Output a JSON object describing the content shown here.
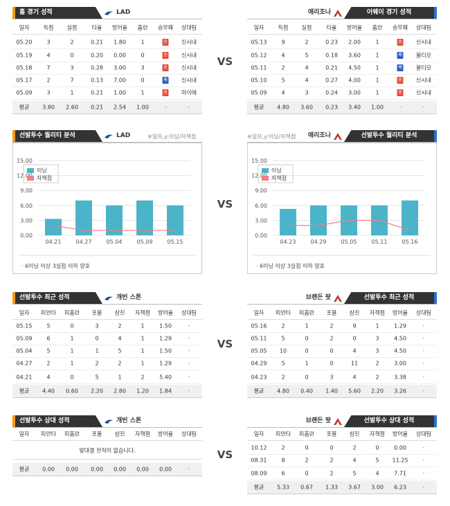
{
  "vs": "VS",
  "panels": [
    {
      "header": "홈 경기 성적",
      "team": "LAD",
      "columns": [
        "일자",
        "득점",
        "실점",
        "타율",
        "방어율",
        "홈런",
        "승무패",
        "상대팀"
      ],
      "rows": [
        [
          "05.20",
          "3",
          "2",
          "0.21",
          "1.80",
          "1",
          "승",
          "신시내"
        ],
        [
          "05.19",
          "4",
          "0",
          "0.20",
          "0.00",
          "0",
          "승",
          "신시내"
        ],
        [
          "05.18",
          "7",
          "3",
          "0.28",
          "3.00",
          "3",
          "승",
          "신시내"
        ],
        [
          "05.17",
          "2",
          "7",
          "0.13",
          "7.00",
          "0",
          "패",
          "신시내"
        ],
        [
          "05.09",
          "3",
          "1",
          "0.21",
          "1.00",
          "1",
          "승",
          "마이애"
        ],
        [
          "평균",
          "3.80",
          "2.60",
          "0.21",
          "2.54",
          "1.00",
          "·",
          "·"
        ]
      ]
    },
    {
      "header": "어웨이 경기 성적",
      "team": "애리조나",
      "columns": [
        "일자",
        "득점",
        "실점",
        "타율",
        "방어율",
        "홈런",
        "승무패",
        "상대팀"
      ],
      "rows": [
        [
          "05.13",
          "9",
          "2",
          "0.23",
          "2.00",
          "1",
          "승",
          "신시내"
        ],
        [
          "05.12",
          "4",
          "5",
          "0.18",
          "3.60",
          "1",
          "패",
          "볼티모"
        ],
        [
          "05.11",
          "2",
          "4",
          "0.21",
          "4.50",
          "1",
          "패",
          "볼티모"
        ],
        [
          "05.10",
          "5",
          "4",
          "0.27",
          "4.00",
          "1",
          "승",
          "신시내"
        ],
        [
          "05.09",
          "4",
          "3",
          "0.24",
          "3.00",
          "1",
          "승",
          "신시내"
        ],
        [
          "평균",
          "4.80",
          "3.60",
          "0.23",
          "3.40",
          "1.00",
          "·",
          "·"
        ]
      ]
    },
    {
      "header": "선발투수 최근 성적",
      "team": "개빈 스톤",
      "columns": [
        "일자",
        "피안타",
        "피홈런",
        "포볼",
        "삼진",
        "자책점",
        "방어율",
        "상대팀"
      ],
      "rows": [
        [
          "05.15",
          "5",
          "0",
          "3",
          "2",
          "1",
          "1.50",
          "·"
        ],
        [
          "05.09",
          "6",
          "1",
          "0",
          "4",
          "1",
          "1.29",
          "·"
        ],
        [
          "05.04",
          "5",
          "1",
          "1",
          "5",
          "1",
          "1.50",
          "·"
        ],
        [
          "04.27",
          "2",
          "1",
          "2",
          "2",
          "1",
          "1.29",
          "·"
        ],
        [
          "04.21",
          "4",
          "0",
          "5",
          "1",
          "2",
          "5.40",
          "·"
        ],
        [
          "평균",
          "4.40",
          "0.60",
          "2.20",
          "2.80",
          "1.20",
          "1.84",
          "·"
        ]
      ]
    },
    {
      "header": "선발투수 최근 성적",
      "team": "브랜든 팟",
      "columns": [
        "일자",
        "피안타",
        "피홈런",
        "포볼",
        "삼진",
        "자책점",
        "방어율",
        "상대팀"
      ],
      "rows": [
        [
          "05.16",
          "2",
          "1",
          "2",
          "9",
          "1",
          "1.29",
          "·"
        ],
        [
          "05.11",
          "5",
          "0",
          "2",
          "0",
          "3",
          "4.50",
          "·"
        ],
        [
          "05.05",
          "10",
          "0",
          "0",
          "4",
          "3",
          "4.50",
          "·"
        ],
        [
          "04.29",
          "5",
          "1",
          "0",
          "11",
          "2",
          "3.00",
          "·"
        ],
        [
          "04.23",
          "2",
          "0",
          "3",
          "4",
          "2",
          "3.38",
          "·"
        ],
        [
          "평균",
          "4.80",
          "0.40",
          "1.40",
          "5.60",
          "2.20",
          "3.26",
          "·"
        ]
      ]
    },
    {
      "header": "선발투수 상대 성적",
      "team": "개빈 스톤",
      "columns": [
        "일자",
        "피안타",
        "피홈런",
        "포볼",
        "삼진",
        "자책점",
        "방어율",
        "상대팀"
      ],
      "message": "맞대결 전적이 없습니다.",
      "rows": [
        [
          "평균",
          "0.00",
          "0.00",
          "0.00",
          "0.00",
          "0.00",
          "0.00",
          "·"
        ]
      ]
    },
    {
      "header": "선발투수 상대 성적",
      "team": "브랜든 팟",
      "columns": [
        "일자",
        "피안타",
        "피홈런",
        "포볼",
        "삼진",
        "자책점",
        "방어율",
        "상대팀"
      ],
      "rows": [
        [
          "10.12",
          "2",
          "0",
          "0",
          "2",
          "0",
          "0.00",
          "·"
        ],
        [
          "08.31",
          "8",
          "2",
          "2",
          "4",
          "5",
          "11.25",
          "·"
        ],
        [
          "08.09",
          "6",
          "0",
          "2",
          "5",
          "4",
          "7.71",
          "·"
        ],
        [
          "평균",
          "5.33",
          "0.67",
          "1.33",
          "3.67",
          "3.00",
          "6.23",
          "·"
        ]
      ]
    }
  ],
  "charts": [
    {
      "type": "bar",
      "header": "선발투수 퀄리티 분석",
      "team": "LAD",
      "note": "※일자,y:이닝/자책점",
      "categories": [
        "04.21",
        "04.27",
        "05.04",
        "05.09",
        "05.15"
      ],
      "series": [
        {
          "name": "이닝",
          "color": "#4bb4c8",
          "values": [
            3.3,
            7,
            6,
            7,
            6
          ]
        },
        {
          "name": "자책점",
          "color": "#f07f8a",
          "type": "line",
          "values": [
            2,
            1,
            1,
            1,
            1
          ]
        }
      ],
      "ylim": [
        0,
        15
      ],
      "yticks": [
        {
          "value": 0,
          "label": "0.00"
        },
        {
          "value": 3,
          "label": "3.00"
        },
        {
          "value": 6,
          "label": "6.00"
        },
        {
          "value": 9,
          "label": "9.00"
        },
        {
          "value": 12,
          "label": "12.00"
        },
        {
          "value": 15,
          "label": "15.00"
        }
      ],
      "grid": true,
      "footnote": "· 6이닝 이상 3실점 이하 양호"
    },
    {
      "type": "bar",
      "header": "선발투수 퀄리티 분석",
      "team": "애리조나",
      "note": "※일자,y:이닝/자책점",
      "categories": [
        "04.23",
        "04.29",
        "05.05",
        "05.11",
        "05.16"
      ],
      "series": [
        {
          "name": "이닝",
          "color": "#4bb4c8",
          "values": [
            5.3,
            6,
            6,
            6,
            7
          ]
        },
        {
          "name": "자책점",
          "color": "#f07f8a",
          "type": "line",
          "values": [
            2,
            2,
            3,
            3,
            1
          ]
        }
      ],
      "ylim": [
        0,
        15
      ],
      "yticks": [
        {
          "value": 0,
          "label": "0.00"
        },
        {
          "value": 3,
          "label": "3.00"
        },
        {
          "value": 6,
          "label": "6.00"
        },
        {
          "value": 9,
          "label": "9.00"
        },
        {
          "value": 12,
          "label": "12.00"
        },
        {
          "value": 15,
          "label": "15.00"
        }
      ],
      "grid": true,
      "footnote": "· 6이닝 이상 3실점 이하 양호"
    }
  ]
}
